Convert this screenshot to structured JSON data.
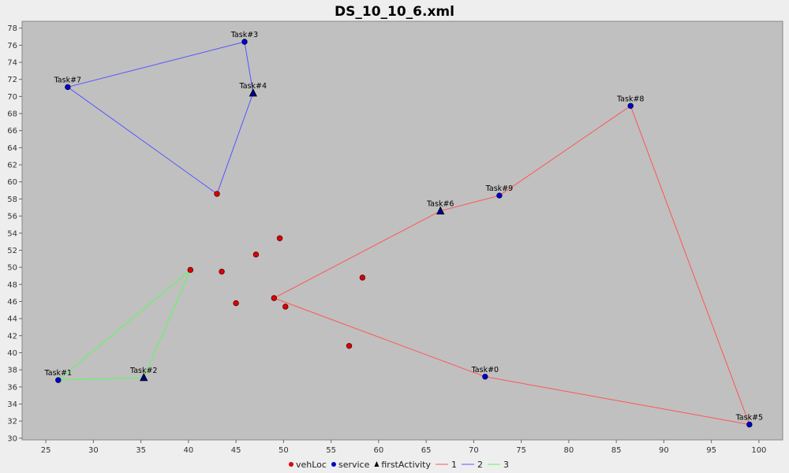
{
  "chart_data": {
    "type": "scatter",
    "title": "DS_10_10_6.xml",
    "xlim": [
      22.5,
      102.5
    ],
    "ylim": [
      29.8,
      78.8
    ],
    "x_ticks": [
      25,
      30,
      35,
      40,
      45,
      50,
      55,
      60,
      65,
      70,
      75,
      80,
      85,
      90,
      95,
      100
    ],
    "y_ticks": [
      30,
      32,
      34,
      36,
      38,
      40,
      42,
      44,
      46,
      48,
      50,
      52,
      54,
      56,
      58,
      60,
      62,
      64,
      66,
      68,
      70,
      72,
      74,
      76,
      78
    ],
    "background": "#c0c0c0",
    "legend_position": "bottom",
    "vehicle_locations": [
      {
        "x": 43.0,
        "y": 58.6
      },
      {
        "x": 40.2,
        "y": 49.7
      },
      {
        "x": 49.0,
        "y": 46.4
      },
      {
        "x": 43.5,
        "y": 49.5
      },
      {
        "x": 47.1,
        "y": 51.5
      },
      {
        "x": 49.6,
        "y": 53.4
      },
      {
        "x": 45.0,
        "y": 45.8
      },
      {
        "x": 50.2,
        "y": 45.4
      },
      {
        "x": 58.3,
        "y": 48.8
      },
      {
        "x": 56.9,
        "y": 40.8
      }
    ],
    "services": [
      {
        "label": "Task#0",
        "x": 71.2,
        "y": 37.2,
        "first": false
      },
      {
        "label": "Task#1",
        "x": 26.3,
        "y": 36.8,
        "first": false
      },
      {
        "label": "Task#2",
        "x": 35.3,
        "y": 37.1,
        "first": true
      },
      {
        "label": "Task#3",
        "x": 45.9,
        "y": 76.4,
        "first": false
      },
      {
        "label": "Task#4",
        "x": 46.8,
        "y": 70.4,
        "first": true
      },
      {
        "label": "Task#5",
        "x": 99.0,
        "y": 31.6,
        "first": false
      },
      {
        "label": "Task#6",
        "x": 66.5,
        "y": 56.6,
        "first": true
      },
      {
        "label": "Task#7",
        "x": 27.3,
        "y": 71.1,
        "first": false
      },
      {
        "label": "Task#8",
        "x": 86.5,
        "y": 68.9,
        "first": false
      },
      {
        "label": "Task#9",
        "x": 72.7,
        "y": 58.4,
        "first": false
      }
    ],
    "series": [
      {
        "name": "1",
        "color": "#ff5555",
        "points": [
          [
            49.0,
            46.4
          ],
          [
            66.5,
            56.6
          ],
          [
            72.7,
            58.4
          ],
          [
            86.5,
            68.9
          ],
          [
            99.0,
            31.6
          ],
          [
            71.2,
            37.2
          ],
          [
            49.0,
            46.4
          ]
        ]
      },
      {
        "name": "2",
        "color": "#5555ff",
        "points": [
          [
            43.0,
            58.6
          ],
          [
            46.8,
            70.4
          ],
          [
            45.9,
            76.4
          ],
          [
            27.3,
            71.1
          ],
          [
            43.0,
            58.6
          ]
        ]
      },
      {
        "name": "3",
        "color": "#55ff55",
        "points": [
          [
            40.2,
            49.7
          ],
          [
            35.3,
            37.1
          ],
          [
            26.3,
            36.8
          ],
          [
            40.2,
            49.7
          ]
        ]
      }
    ],
    "legend": {
      "veh_label": "vehLoc",
      "service_label": "service",
      "first_label": "firstActivity",
      "veh_color": "#dd0000",
      "service_color": "#0000cc",
      "first_color": "#000000"
    }
  }
}
